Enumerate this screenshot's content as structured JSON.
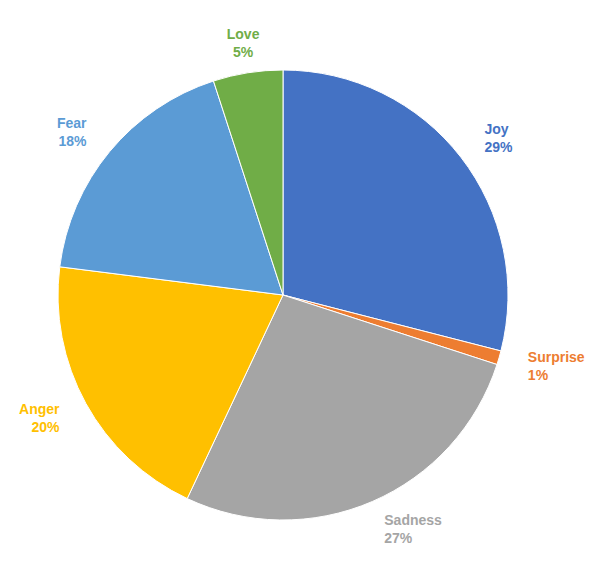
{
  "chart_data": {
    "type": "pie",
    "categories": [
      "Joy",
      "Surprise",
      "Sadness",
      "Anger",
      "Fear",
      "Love"
    ],
    "values": [
      29,
      1,
      27,
      20,
      18,
      5
    ],
    "value_labels": [
      "29%",
      "1%",
      "27%",
      "20%",
      "18%",
      "5%"
    ],
    "colors": [
      "#4472c4",
      "#ed7d31",
      "#a5a5a5",
      "#ffc000",
      "#5b9bd5",
      "#70ad47"
    ],
    "data_labels": true
  }
}
